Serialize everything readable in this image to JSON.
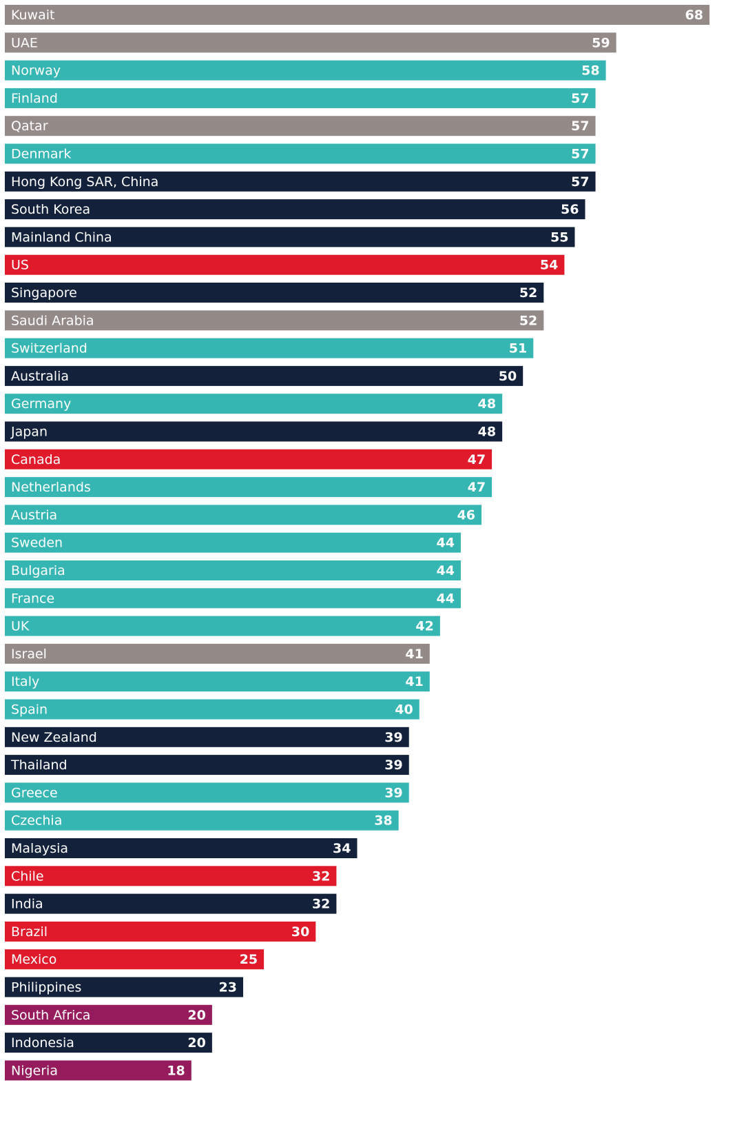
{
  "chart_data": {
    "type": "bar",
    "orientation": "horizontal",
    "categories": [
      "Kuwait",
      "UAE",
      "Norway",
      "Finland",
      "Qatar",
      "Denmark",
      "Hong Kong SAR, China",
      "South Korea",
      "Mainland China",
      "US",
      "Singapore",
      "Saudi Arabia",
      "Switzerland",
      "Australia",
      "Germany",
      "Japan",
      "Canada",
      "Netherlands",
      "Austria",
      "Sweden",
      "Bulgaria",
      "France",
      "UK",
      "Israel",
      "Italy",
      "Spain",
      "New Zealand",
      "Thailand",
      "Greece",
      "Czechia",
      "Malaysia",
      "Chile",
      "India",
      "Brazil",
      "Mexico",
      "Philippines",
      "South Africa",
      "Indonesia",
      "Nigeria"
    ],
    "values": [
      68,
      59,
      58,
      57,
      57,
      57,
      57,
      56,
      55,
      54,
      52,
      52,
      51,
      50,
      48,
      48,
      47,
      47,
      46,
      44,
      44,
      44,
      42,
      41,
      41,
      40,
      39,
      39,
      39,
      38,
      34,
      32,
      32,
      30,
      25,
      23,
      20,
      20,
      18
    ],
    "colors": [
      "#948b89",
      "#948b89",
      "#36b6b3",
      "#36b6b3",
      "#948b89",
      "#36b6b3",
      "#14213a",
      "#14213a",
      "#14213a",
      "#e01a2b",
      "#14213a",
      "#948b89",
      "#36b6b3",
      "#14213a",
      "#36b6b3",
      "#14213a",
      "#e01a2b",
      "#36b6b3",
      "#36b6b3",
      "#36b6b3",
      "#36b6b3",
      "#36b6b3",
      "#36b6b3",
      "#948b89",
      "#36b6b3",
      "#36b6b3",
      "#14213a",
      "#14213a",
      "#36b6b3",
      "#36b6b3",
      "#14213a",
      "#e01a2b",
      "#14213a",
      "#e01a2b",
      "#e01a2b",
      "#14213a",
      "#951b5c",
      "#14213a",
      "#951b5c"
    ]
  }
}
